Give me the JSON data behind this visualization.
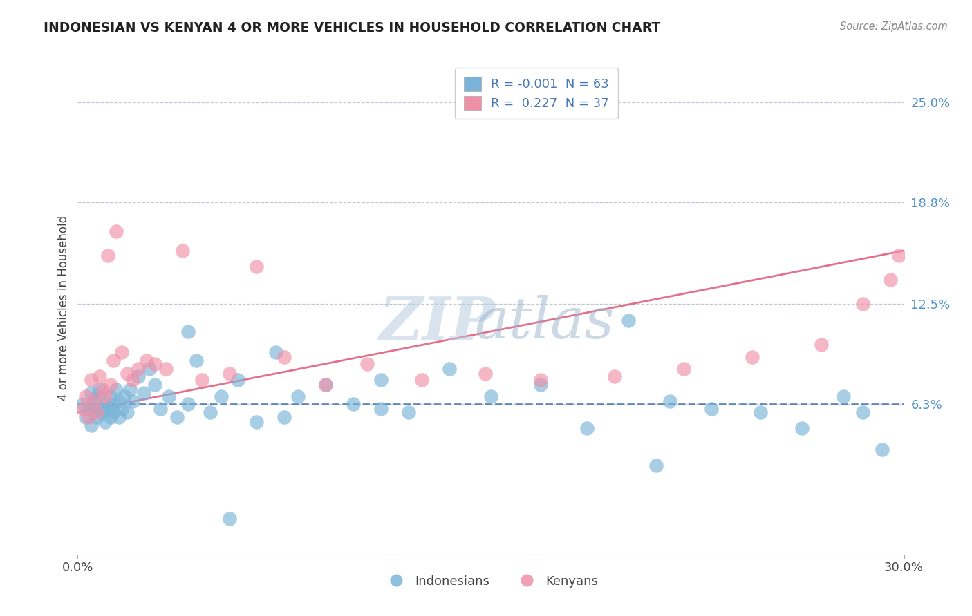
{
  "title": "INDONESIAN VS KENYAN 4 OR MORE VEHICLES IN HOUSEHOLD CORRELATION CHART",
  "source": "Source: ZipAtlas.com",
  "ylabel": "4 or more Vehicles in Household",
  "ytick_labels": [
    "6.3%",
    "12.5%",
    "18.8%",
    "25.0%"
  ],
  "ytick_values": [
    0.063,
    0.125,
    0.188,
    0.25
  ],
  "xmin": 0.0,
  "xmax": 0.3,
  "ymin": -0.03,
  "ymax": 0.275,
  "indonesian_color": "#7ab4d8",
  "kenyan_color": "#f090a8",
  "indonesian_line_color": "#4878b0",
  "kenyan_line_color": "#e05878",
  "legend_r1": "R = -0.001",
  "legend_n1": "N = 63",
  "legend_r2": "R =  0.227",
  "legend_n2": "N = 37",
  "indo_x": [
    0.002,
    0.003,
    0.004,
    0.005,
    0.005,
    0.006,
    0.006,
    0.007,
    0.007,
    0.008,
    0.008,
    0.009,
    0.01,
    0.01,
    0.011,
    0.012,
    0.012,
    0.013,
    0.013,
    0.014,
    0.015,
    0.015,
    0.016,
    0.017,
    0.018,
    0.019,
    0.02,
    0.022,
    0.024,
    0.026,
    0.028,
    0.03,
    0.033,
    0.036,
    0.04,
    0.043,
    0.048,
    0.052,
    0.058,
    0.065,
    0.072,
    0.08,
    0.09,
    0.1,
    0.11,
    0.12,
    0.135,
    0.15,
    0.168,
    0.185,
    0.2,
    0.215,
    0.23,
    0.248,
    0.263,
    0.278,
    0.292,
    0.04,
    0.075,
    0.11,
    0.055,
    0.21,
    0.285
  ],
  "indo_y": [
    0.063,
    0.055,
    0.06,
    0.07,
    0.05,
    0.058,
    0.065,
    0.055,
    0.068,
    0.06,
    0.072,
    0.058,
    0.063,
    0.052,
    0.06,
    0.068,
    0.055,
    0.063,
    0.058,
    0.072,
    0.055,
    0.065,
    0.06,
    0.068,
    0.058,
    0.072,
    0.065,
    0.08,
    0.07,
    0.085,
    0.075,
    0.06,
    0.068,
    0.055,
    0.063,
    0.09,
    0.058,
    0.068,
    0.078,
    0.052,
    0.095,
    0.068,
    0.075,
    0.063,
    0.078,
    0.058,
    0.085,
    0.068,
    0.075,
    0.048,
    0.115,
    0.065,
    0.06,
    0.058,
    0.048,
    0.068,
    0.035,
    0.108,
    0.055,
    0.06,
    -0.008,
    0.025,
    0.058
  ],
  "ken_x": [
    0.002,
    0.003,
    0.004,
    0.005,
    0.006,
    0.007,
    0.008,
    0.009,
    0.01,
    0.011,
    0.012,
    0.013,
    0.014,
    0.016,
    0.018,
    0.02,
    0.022,
    0.025,
    0.028,
    0.032,
    0.038,
    0.045,
    0.055,
    0.065,
    0.075,
    0.09,
    0.105,
    0.125,
    0.148,
    0.168,
    0.195,
    0.22,
    0.245,
    0.27,
    0.285,
    0.295,
    0.298
  ],
  "ken_y": [
    0.06,
    0.068,
    0.055,
    0.078,
    0.065,
    0.058,
    0.08,
    0.072,
    0.068,
    0.155,
    0.075,
    0.09,
    0.17,
    0.095,
    0.082,
    0.078,
    0.085,
    0.09,
    0.088,
    0.085,
    0.158,
    0.078,
    0.082,
    0.148,
    0.092,
    0.075,
    0.088,
    0.078,
    0.082,
    0.078,
    0.08,
    0.085,
    0.092,
    0.1,
    0.125,
    0.14,
    0.155
  ]
}
